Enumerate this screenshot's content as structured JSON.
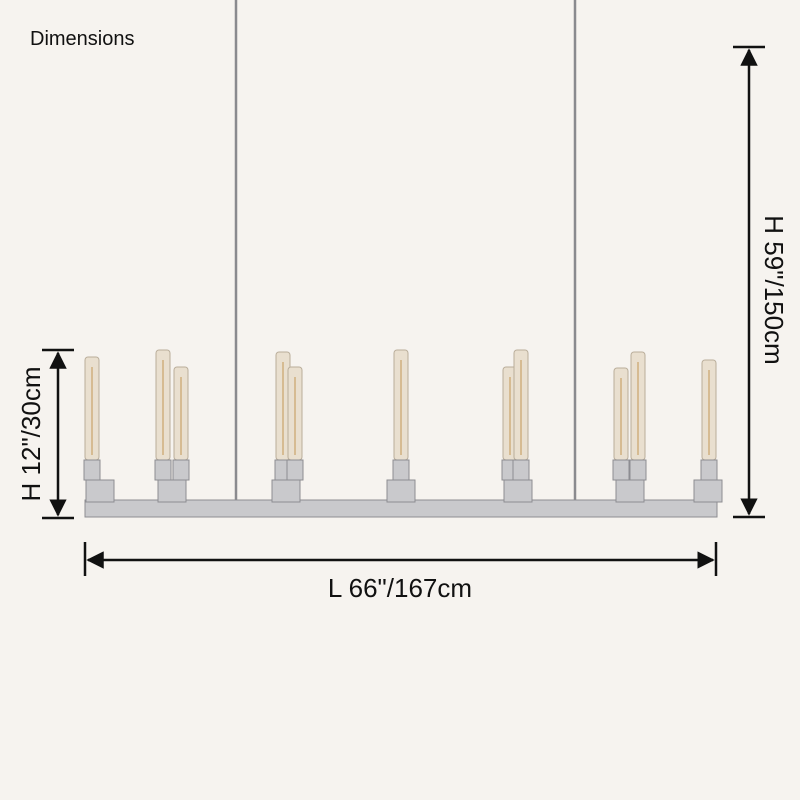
{
  "header": {
    "title": "Dimensions"
  },
  "dimensions": {
    "overall_height": "H 59\"/150cm",
    "fixture_height": "H 12\"/30cm",
    "length": "L 66\"/167cm"
  }
}
